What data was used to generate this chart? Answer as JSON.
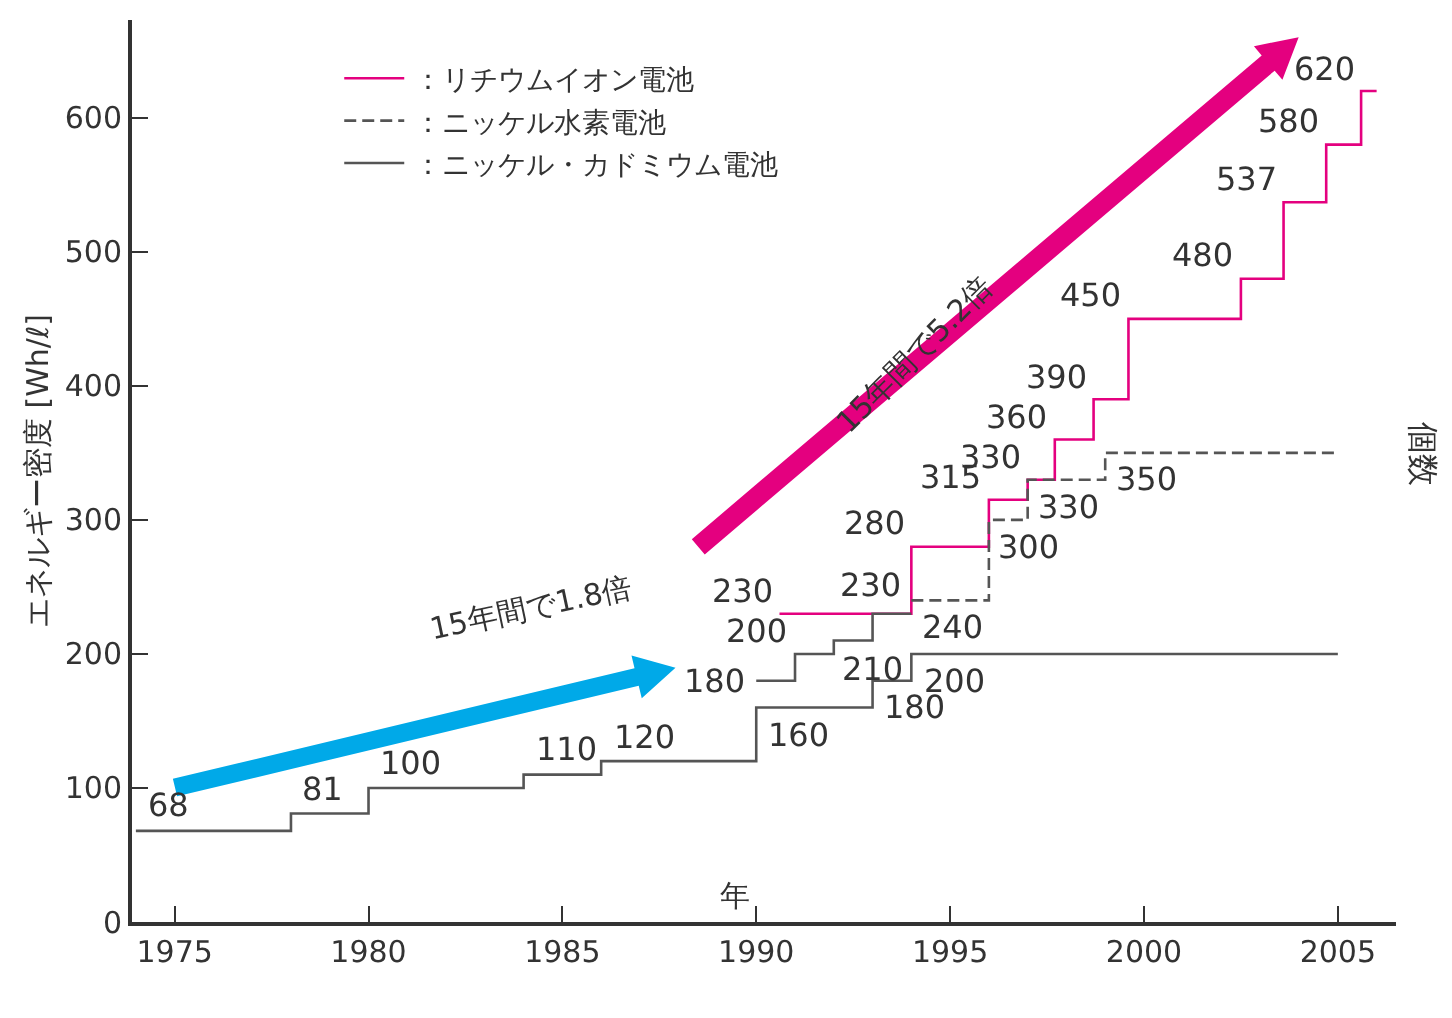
{
  "chart_data": {
    "type": "step",
    "ylabel": "エネルギー密度 [Wh/ℓ]",
    "xlabel": "年",
    "xlim": [
      1973.9,
      2006.5
    ],
    "xticks": [
      1975,
      1980,
      1985,
      1990,
      1995,
      2000,
      2005
    ],
    "ylim": [
      0,
      673
    ],
    "yticks": [
      0,
      100,
      200,
      300,
      400,
      500,
      600
    ],
    "legend": "top left",
    "series": [
      {
        "name": "：リチウムイオン電池",
        "color": "#e4007f",
        "line_style": "solid",
        "x": [
          1990.6,
          1994,
          1996,
          1997,
          1997.7,
          1998.7,
          1999.6,
          2002.5,
          2003.6,
          2004.7,
          2005.6,
          2006
        ],
        "values": [
          230,
          280,
          315,
          330,
          360,
          390,
          450,
          480,
          537,
          580,
          620,
          620
        ],
        "value_labels": [
          "230",
          "280",
          "315",
          "330",
          "360",
          "390",
          "450",
          "480",
          "537",
          "580",
          "620",
          null
        ]
      },
      {
        "name": "：ニッケル水素電池",
        "color": "#555555",
        "line_style": "dashed",
        "x": [
          1994,
          1996,
          1997,
          1999,
          2005
        ],
        "values": [
          240,
          300,
          330,
          350,
          350
        ],
        "value_labels": [
          "240",
          "300",
          "330",
          "350",
          null
        ]
      },
      {
        "name": "：ニッケル・カドミウム電池",
        "color": "#555555",
        "line_style": "solid",
        "x": [
          1974,
          1978,
          1980,
          1984,
          1986,
          1990,
          1993,
          1994,
          2005
        ],
        "values": [
          68,
          81,
          100,
          110,
          120,
          160,
          180,
          200,
          200
        ],
        "value_labels": [
          "68",
          "81",
          "100",
          "110",
          "120",
          "160",
          "180",
          "200",
          null
        ]
      },
      {
        "color": "#555555",
        "line_style": "solid",
        "x": [
          1990,
          1991,
          1992,
          1993,
          1994
        ],
        "values": [
          180,
          200,
          210,
          230,
          230
        ],
        "value_labels": [
          "180",
          "200",
          "210",
          "230",
          null
        ]
      }
    ],
    "annotations": [
      "15年間で1.8倍",
      "15年間で5.2倍",
      "個数"
    ]
  }
}
